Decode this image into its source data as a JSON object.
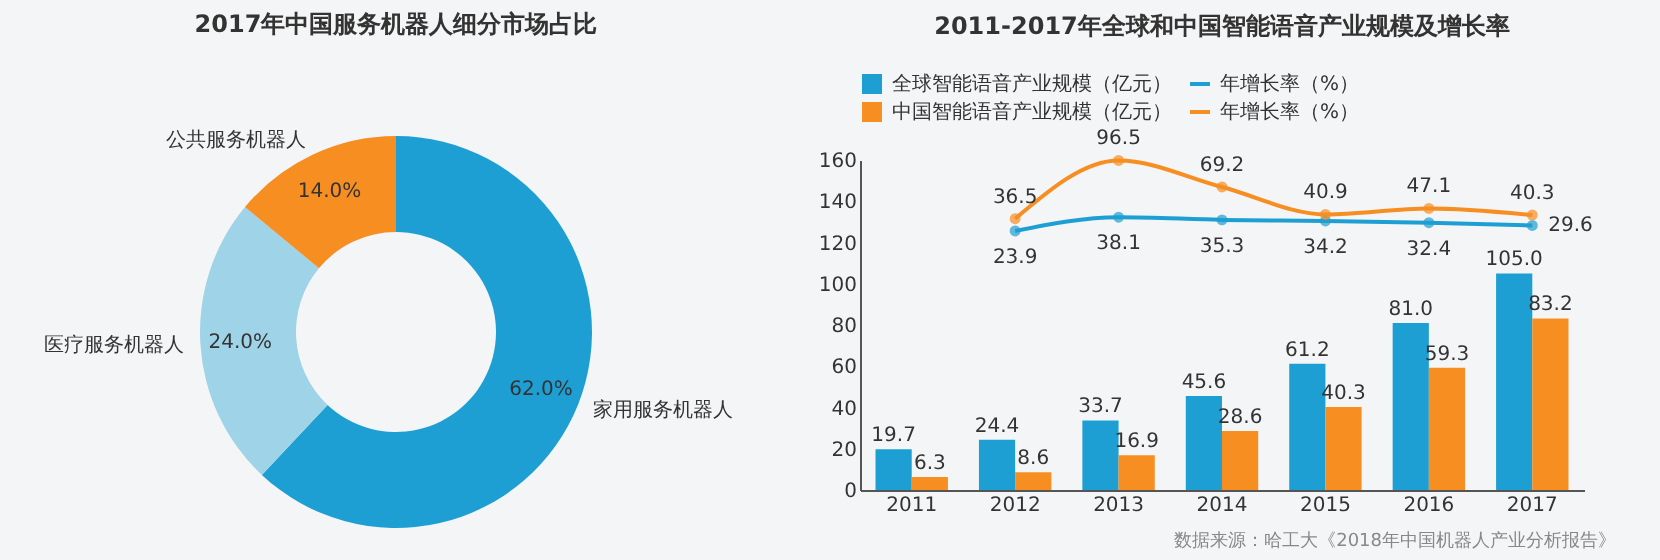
{
  "chart_data": [
    {
      "type": "donut",
      "title": "2017年中国服务机器人细分市场占比",
      "categories": [
        "家用服务机器人",
        "医疗服务机器人",
        "公共服务机器人"
      ],
      "values": [
        62.0,
        24.0,
        14.0
      ],
      "colors": [
        "#1e9fd3",
        "#9fd3e8",
        "#f68e22"
      ],
      "value_labels": [
        "62.0%",
        "24.0%",
        "14.0%"
      ],
      "legend": false
    },
    {
      "type": "bar",
      "title": "2011-2017年全球和中国智能语音产业规模及增长率",
      "categories": [
        "2011",
        "2012",
        "2013",
        "2014",
        "2015",
        "2016",
        "2017"
      ],
      "ylim": [
        0,
        160
      ],
      "yticks": [
        0,
        20,
        40,
        60,
        80,
        100,
        120,
        140,
        160
      ],
      "y2lim": [
        -243,
        97
      ],
      "grid": false,
      "legend": "top",
      "marker": "circle",
      "series": [
        {
          "name": "全球智能语音产业规模（亿元）",
          "color": "#1e9fd3",
          "values": [
            19.7,
            24.4,
            33.7,
            45.6,
            61.2,
            81.0,
            105.0
          ],
          "value_labels": [
            "19.7",
            "24.4",
            "33.7",
            "45.6",
            "61.2",
            "81.0",
            "105.0"
          ]
        },
        {
          "name": "中国智能语音产业规模（亿元）",
          "color": "#f68e22",
          "values": [
            6.3,
            8.6,
            16.9,
            28.6,
            40.3,
            59.3,
            83.2
          ],
          "value_labels": [
            "6.3",
            "8.6",
            "16.9",
            "28.6",
            "40.3",
            "59.3",
            "83.2"
          ]
        },
        {
          "name": "年增长率（%）",
          "type": "line",
          "axis": "y2",
          "color": "#1e9fd3",
          "values": [
            null,
            23.9,
            38.1,
            35.3,
            34.2,
            32.4,
            29.6
          ],
          "value_labels": [
            null,
            "23.9",
            "38.1",
            "35.3",
            "34.2",
            "32.4",
            "29.6"
          ]
        },
        {
          "name": "年增长率（%）",
          "type": "line",
          "axis": "y2",
          "color": "#f68e22",
          "values": [
            null,
            36.5,
            96.5,
            69.2,
            40.9,
            47.1,
            40.3
          ],
          "value_labels": [
            null,
            "36.5",
            "96.5",
            "69.2",
            "40.9",
            "47.1",
            "40.3"
          ]
        }
      ],
      "annotations": [
        "数据来源：哈工大《2018年中国机器人产业分析报告》"
      ]
    }
  ]
}
